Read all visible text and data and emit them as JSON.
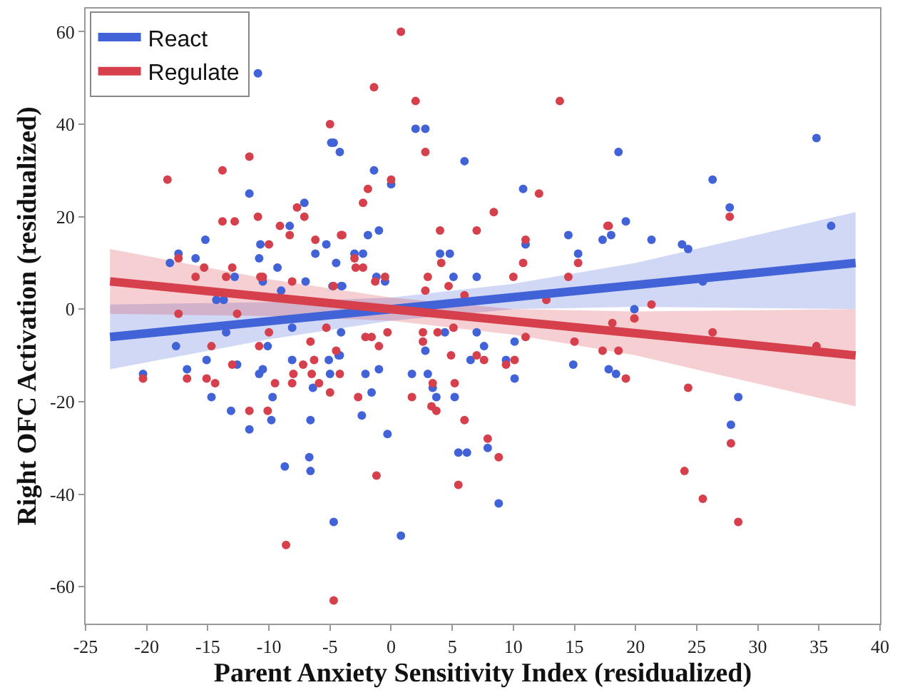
{
  "chart_data": {
    "type": "scatter",
    "xlabel": "Parent Anxiety Sensitivity Index (residualized)",
    "ylabel": "Right OFC Activation (residualized)",
    "xlim": [
      -25,
      40
    ],
    "xticks": [
      -25,
      -20,
      -15,
      -10,
      -5,
      0,
      5,
      10,
      15,
      20,
      25,
      30,
      35,
      40
    ],
    "ylim": [
      -68,
      65
    ],
    "yticks": [
      -60,
      -40,
      -20,
      0,
      20,
      40,
      60
    ],
    "legend": "top left",
    "series": [
      {
        "type": "line",
        "name": "React",
        "color": "#4262d8",
        "marker": "none",
        "x": [
          -23,
          -10,
          0,
          10,
          20,
          38
        ],
        "values": [
          -6,
          -2.6,
          0,
          2.6,
          5.2,
          10
        ],
        "lower": [
          -13,
          -6.5,
          -2.5,
          0,
          0.5,
          0
        ],
        "upper": [
          1,
          1.5,
          2.5,
          5.5,
          10,
          21
        ]
      },
      {
        "type": "line",
        "name": "Regulate",
        "color": "#d6404c",
        "marker": "none",
        "x": [
          -23,
          -10,
          0,
          10,
          20,
          38
        ],
        "values": [
          6,
          2.6,
          0,
          -2.6,
          -5.2,
          -10
        ],
        "lower": [
          -1,
          -1.5,
          -2.5,
          -5.5,
          -10,
          -21
        ],
        "upper": [
          13,
          6.5,
          2.5,
          0,
          -0.5,
          0
        ]
      },
      {
        "color": "#4262d8",
        "marker": "circle",
        "x": [
          -10.9,
          -4.9,
          -4.2,
          -11.6,
          -7.1,
          -8.3,
          -15.2,
          -10.7,
          -5.3,
          -18.1,
          -17.4,
          -16.0,
          -10.8,
          -6.2,
          -9.3,
          -4.5,
          -3.0,
          -12.8,
          -10.5,
          -7.0,
          -4.8,
          -4.0,
          -14.3,
          -13.7,
          -9.0,
          2.0,
          2.8,
          -4.7,
          6.0,
          -1.4,
          0,
          10.8,
          -1.9,
          -1.0,
          4.0,
          4.8,
          11.0,
          14.5,
          15.3,
          17.3,
          -2.3,
          5.1,
          7.0,
          -1.2,
          -0.5,
          -4.1,
          34.8,
          18.6,
          26.3,
          27.7,
          36.0,
          19.2,
          18.0,
          21.3,
          23.8,
          24.3,
          25.5,
          19.9,
          -17.6,
          -20.3,
          -16.7,
          -15.1,
          -14.7,
          -13.1,
          -12.6,
          -11.6,
          -10.8,
          -10.5,
          -10.1,
          -9.8,
          -9.7,
          -8.7,
          -8.1,
          -8.1,
          -6.6,
          -6.7,
          -6.6,
          -5.1,
          -5.0,
          -4.2,
          -4.7,
          -4.1,
          -13.5,
          -6.4,
          -4.3,
          -2.1,
          -1.0,
          -1.6,
          -2.4,
          -0.3,
          0.8,
          1.7,
          2.8,
          3.0,
          3.4,
          3.7,
          4.4,
          5.2,
          5.5,
          6.2,
          6.5,
          7.0,
          7.6,
          7.9,
          8.8,
          9.4,
          10.1,
          10.1,
          14.9,
          17.8,
          18.4,
          28.4,
          27.8
        ],
        "values": [
          51,
          36,
          34,
          25,
          23,
          18,
          15,
          14,
          14,
          10,
          12,
          11,
          11,
          12,
          9,
          10,
          12,
          7,
          6,
          6,
          5,
          5,
          2,
          2,
          4,
          39,
          39,
          36,
          32,
          30,
          27,
          26,
          16,
          17,
          12,
          12,
          14,
          16,
          12,
          15,
          12,
          7,
          7,
          7,
          6,
          5,
          37,
          34,
          28,
          22,
          18,
          19,
          16,
          15,
          14,
          13,
          6,
          0,
          -8,
          -14,
          -13,
          -11,
          -19,
          -22,
          -12,
          -26,
          -14,
          -13,
          -8,
          -24,
          -19,
          -34,
          -11,
          -4,
          -24,
          -32,
          -35,
          -11,
          -14,
          -10,
          -46,
          -5,
          -5,
          -17,
          -10,
          -14,
          -13,
          -18,
          -23,
          -27,
          -49,
          -14,
          -9,
          -14,
          -17,
          -19,
          -5,
          -19,
          -31,
          -31,
          -11,
          -5,
          -8,
          -30,
          -42,
          -11,
          -7,
          -15,
          -12,
          -13,
          -14,
          -19,
          -25
        ]
      },
      {
        "color": "#d6404c",
        "marker": "circle",
        "x": [
          -18.3,
          -13.8,
          -11.6,
          -5.0,
          -13.8,
          -12.8,
          -10.9,
          -7.7,
          -7.1,
          -9.1,
          -8.3,
          -6.2,
          -4.0,
          -10.0,
          -17.4,
          -15.3,
          -13.0,
          -16.0,
          -13.5,
          -10.7,
          -10.5,
          -8.1,
          -4.7,
          -17.4,
          -12.6,
          -2.9,
          0.8,
          -1.4,
          2.0,
          2.8,
          13.8,
          0,
          -1.9,
          -2.3,
          -4.1,
          8.4,
          12.1,
          4.0,
          7.0,
          11.0,
          15.3,
          17.7,
          -3.0,
          -2.3,
          4.1,
          3.0,
          10.0,
          10.8,
          -0.5,
          -1.3,
          2.8,
          4.7,
          14.5,
          6.0,
          12.7,
          17.8,
          27.7,
          21.3,
          19.9,
          18.1,
          -20.3,
          -16.7,
          -15.1,
          -14.4,
          -14.7,
          -13.0,
          -11.6,
          -10.8,
          -10.1,
          -9.5,
          -8.1,
          -8.6,
          -8.0,
          -7.2,
          -6.6,
          -6.3,
          -6.5,
          -5.9,
          -5.0,
          -5.3,
          -4.5,
          -4.2,
          -4.7,
          -10.0,
          -2.1,
          -1.6,
          -1.0,
          -0.3,
          -2.7,
          -1.2,
          1.7,
          2.6,
          2.6,
          3.4,
          3.3,
          3.7,
          3.8,
          4.9,
          5.1,
          5.2,
          6.0,
          5.5,
          7.0,
          7.6,
          7.9,
          8.8,
          9.4,
          10.1,
          11.0,
          15.0,
          17.3,
          18.6,
          19.2,
          24.3,
          26.3,
          34.8,
          27.8,
          24.0,
          25.5,
          28.4
        ],
        "values": [
          28,
          30,
          33,
          40,
          19,
          19,
          20,
          22,
          20,
          18,
          16,
          15,
          16,
          14,
          11,
          9,
          9,
          7,
          7,
          7,
          7,
          6,
          5,
          -1,
          -1,
          9,
          60,
          48,
          45,
          34,
          45,
          28,
          26,
          23,
          16,
          21,
          25,
          17,
          17,
          15,
          10,
          18,
          11,
          9,
          10,
          7,
          7,
          10,
          7,
          6,
          4,
          5,
          7,
          3,
          2,
          18,
          20,
          1,
          -2,
          -3,
          -15,
          -15,
          -15,
          -16,
          -8,
          -12,
          -22,
          -8,
          -22,
          -16,
          -16,
          -51,
          -14,
          -12,
          -7,
          -11,
          -14,
          -16,
          -18,
          -4,
          -9,
          -14,
          -63,
          -5,
          -6,
          -6,
          -8,
          -5,
          -19,
          -36,
          -19,
          -5,
          -7,
          -16,
          -21,
          -22,
          -5,
          -10,
          -4,
          -16,
          -24,
          -38,
          -10,
          -11,
          -28,
          -32,
          -12,
          -11,
          -6,
          -7,
          -9,
          -9,
          -15,
          -17,
          -5,
          -8,
          -29,
          -35,
          -41,
          -46
        ]
      }
    ]
  }
}
